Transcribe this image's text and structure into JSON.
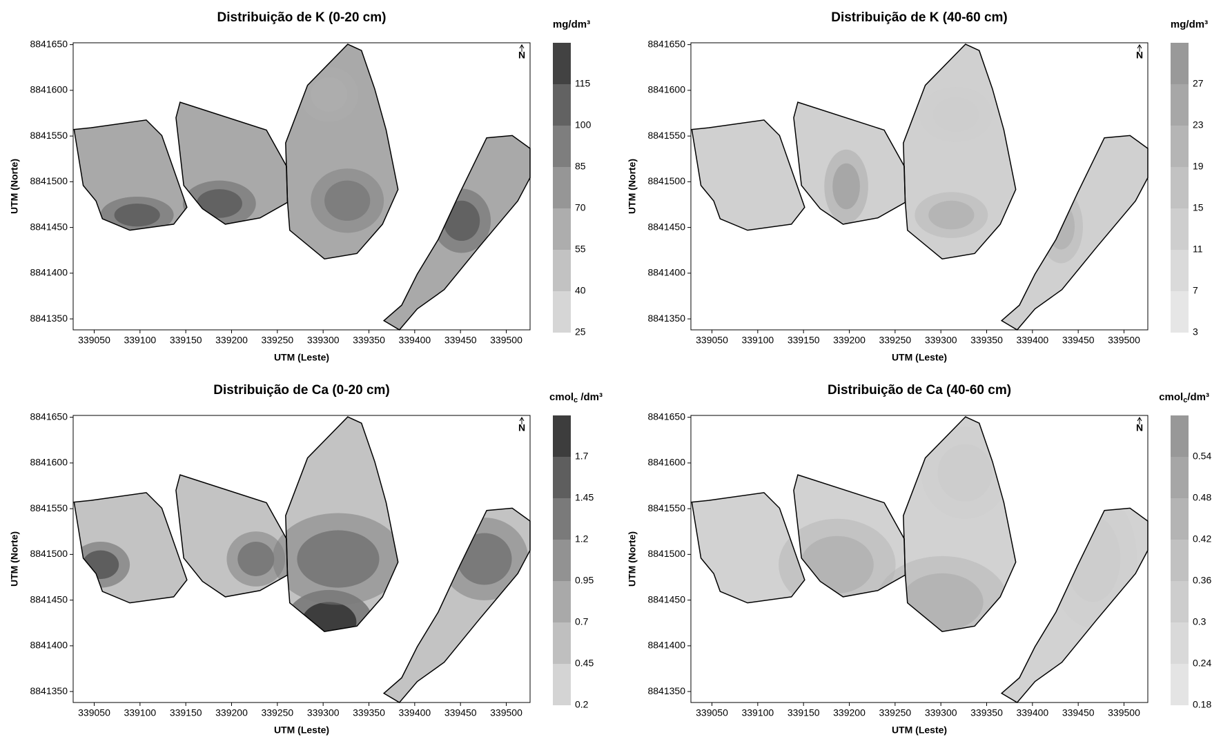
{
  "chart_data": [
    {
      "type": "contour",
      "title": "Distribuição de K (0-20 cm)",
      "x_label": "UTM (Leste)",
      "y_label": "UTM (Norte)",
      "xlim": [
        339027,
        339526
      ],
      "xticks": [
        339050,
        339100,
        339150,
        339200,
        339250,
        339300,
        339350,
        339400,
        339450,
        339500
      ],
      "ylim": [
        8841338,
        8841652
      ],
      "yticks": [
        8841350,
        8841400,
        8841450,
        8841500,
        8841550,
        8841600,
        8841650
      ],
      "north": "N",
      "fill": "#a9a9a9",
      "colorbar": {
        "unit": [
          "mg/dm³"
        ],
        "lim": [
          25,
          130
        ],
        "ticks": [
          25,
          40,
          55,
          70,
          85,
          100,
          115
        ],
        "colors": [
          "#d6d6d6",
          "#c2c2c2",
          "#adadad",
          "#969696",
          "#7e7e7e",
          "#626262",
          "#424242"
        ]
      }
    },
    {
      "type": "contour",
      "title": "Distribuição de K (40-60 cm)",
      "x_label": "UTM (Leste)",
      "y_label": "UTM (Norte)",
      "xlim": [
        339027,
        339526
      ],
      "xticks": [
        339050,
        339100,
        339150,
        339200,
        339250,
        339300,
        339350,
        339400,
        339450,
        339500
      ],
      "ylim": [
        8841338,
        8841652
      ],
      "yticks": [
        8841350,
        8841400,
        8841450,
        8841500,
        8841550,
        8841600,
        8841650
      ],
      "north": "N",
      "fill": "#d0d0d0",
      "colorbar": {
        "unit": [
          "mg/dm³"
        ],
        "lim": [
          3,
          31
        ],
        "ticks": [
          3,
          7,
          11,
          15,
          19,
          23,
          27
        ],
        "colors": [
          "#e6e6e6",
          "#dadada",
          "#cecece",
          "#c2c2c2",
          "#b5b5b5",
          "#a7a7a7",
          "#999999"
        ]
      }
    },
    {
      "type": "contour",
      "title": "Distribuição de Ca (0-20 cm)",
      "x_label": "UTM (Leste)",
      "y_label": "UTM (Norte)",
      "xlim": [
        339027,
        339526
      ],
      "xticks": [
        339050,
        339100,
        339150,
        339200,
        339250,
        339300,
        339350,
        339400,
        339450,
        339500
      ],
      "ylim": [
        8841338,
        8841652
      ],
      "yticks": [
        8841350,
        8841400,
        8841450,
        8841500,
        8841550,
        8841600,
        8841650
      ],
      "north": "N",
      "fill": "#c3c3c3",
      "colorbar": {
        "unit": [
          "cmol",
          "c",
          " /dm³"
        ],
        "lim": [
          0.2,
          1.95
        ],
        "ticks": [
          0.2,
          0.45,
          0.7,
          0.95,
          1.2,
          1.45,
          1.7
        ],
        "colors": [
          "#d4d4d4",
          "#bfbfbf",
          "#a9a9a9",
          "#929292",
          "#7a7a7a",
          "#5e5e5e",
          "#3d3d3d"
        ]
      }
    },
    {
      "type": "contour",
      "title": "Distribuição de Ca (40-60 cm)",
      "x_label": "UTM (Leste)",
      "y_label": "UTM (Norte)",
      "xlim": [
        339027,
        339526
      ],
      "xticks": [
        339050,
        339100,
        339150,
        339200,
        339250,
        339300,
        339350,
        339400,
        339450,
        339500
      ],
      "ylim": [
        8841338,
        8841652
      ],
      "yticks": [
        8841350,
        8841400,
        8841450,
        8841500,
        8841550,
        8841600,
        8841650
      ],
      "north": "N",
      "fill": "#d2d2d2",
      "colorbar": {
        "unit": [
          "cmol",
          "c",
          "/dm³"
        ],
        "lim": [
          0.18,
          0.6
        ],
        "ticks": [
          0.18,
          0.24,
          0.3,
          0.36,
          0.42,
          0.48,
          0.54
        ],
        "colors": [
          "#e4e4e4",
          "#d9d9d9",
          "#cdcdcd",
          "#c1c1c1",
          "#b4b4b4",
          "#a6a6a6",
          "#989898"
        ]
      }
    }
  ]
}
